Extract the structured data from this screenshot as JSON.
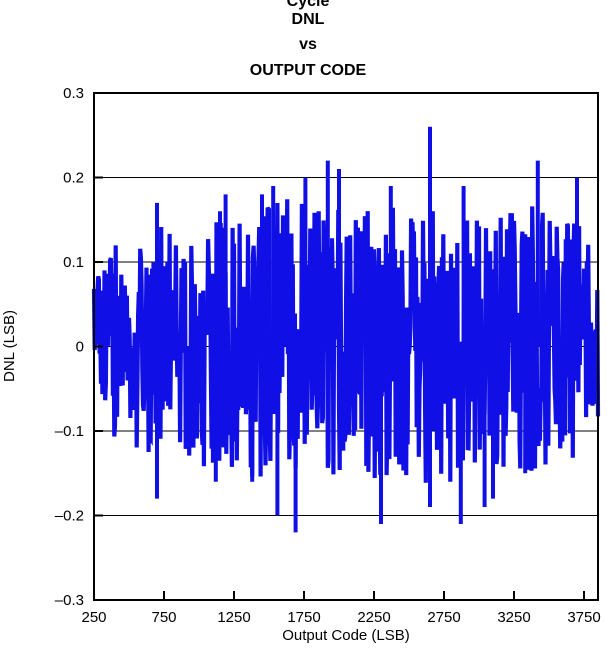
{
  "chart_data": {
    "type": "line",
    "title_lines": [
      "Cycle",
      "DNL",
      "vs",
      "OUTPUT CODE"
    ],
    "xlabel": "Output Code (LSB)",
    "ylabel": "DNL (LSB)",
    "xlim": [
      250,
      3850
    ],
    "ylim": [
      -0.3,
      0.3
    ],
    "x_ticks": [
      250,
      750,
      1250,
      1750,
      2250,
      2750,
      3250,
      3750
    ],
    "x_tick_labels": [
      "250",
      "750",
      "1250",
      "1750",
      "2250",
      "2750",
      "3250",
      "3750"
    ],
    "y_ticks": [
      -0.3,
      -0.2,
      -0.1,
      0,
      0.1,
      0.2,
      0.3
    ],
    "y_tick_labels": [
      "–0.3",
      "–0.2",
      "–0.1",
      "0",
      "0.1",
      "0.2",
      "0.3"
    ],
    "grid": "horizontal",
    "series": [
      {
        "color": "#1010e6",
        "envelope": {
          "x": [
            250,
            400,
            550,
            700,
            850,
            1000,
            1150,
            1300,
            1450,
            1600,
            1750,
            1900,
            2050,
            2200,
            2350,
            2500,
            2650,
            2800,
            2950,
            3100,
            3250,
            3400,
            3550,
            3700,
            3850
          ],
          "upper": [
            0.1,
            0.12,
            0.13,
            0.15,
            0.13,
            0.14,
            0.16,
            0.15,
            0.16,
            0.18,
            0.17,
            0.17,
            0.16,
            0.16,
            0.17,
            0.16,
            0.17,
            0.17,
            0.16,
            0.15,
            0.16,
            0.17,
            0.16,
            0.15,
            0.1
          ],
          "lower": [
            -0.09,
            -0.11,
            -0.12,
            -0.13,
            -0.13,
            -0.14,
            -0.15,
            -0.15,
            -0.16,
            -0.16,
            -0.17,
            -0.16,
            -0.15,
            -0.16,
            -0.16,
            -0.16,
            -0.17,
            -0.16,
            -0.16,
            -0.15,
            -0.15,
            -0.15,
            -0.14,
            -0.13,
            -0.09
          ]
        },
        "spikes": [
          {
            "x": 700,
            "y": 0.17
          },
          {
            "x": 1150,
            "y": 0.16
          },
          {
            "x": 1190,
            "y": 0.18
          },
          {
            "x": 1450,
            "y": 0.18
          },
          {
            "x": 1530,
            "y": 0.19
          },
          {
            "x": 1760,
            "y": 0.2
          },
          {
            "x": 1920,
            "y": 0.22
          },
          {
            "x": 2000,
            "y": 0.21
          },
          {
            "x": 2370,
            "y": 0.19
          },
          {
            "x": 2650,
            "y": 0.26
          },
          {
            "x": 2890,
            "y": 0.19
          },
          {
            "x": 3420,
            "y": 0.22
          },
          {
            "x": 3700,
            "y": 0.2
          },
          {
            "x": 700,
            "y": -0.18
          },
          {
            "x": 1120,
            "y": -0.16
          },
          {
            "x": 1380,
            "y": -0.16
          },
          {
            "x": 1560,
            "y": -0.2
          },
          {
            "x": 1690,
            "y": -0.22
          },
          {
            "x": 2300,
            "y": -0.21
          },
          {
            "x": 2650,
            "y": -0.19
          },
          {
            "x": 2870,
            "y": -0.21
          },
          {
            "x": 3040,
            "y": -0.19
          },
          {
            "x": 3100,
            "y": -0.18
          },
          {
            "x": 3330,
            "y": -0.15
          }
        ]
      }
    ]
  }
}
